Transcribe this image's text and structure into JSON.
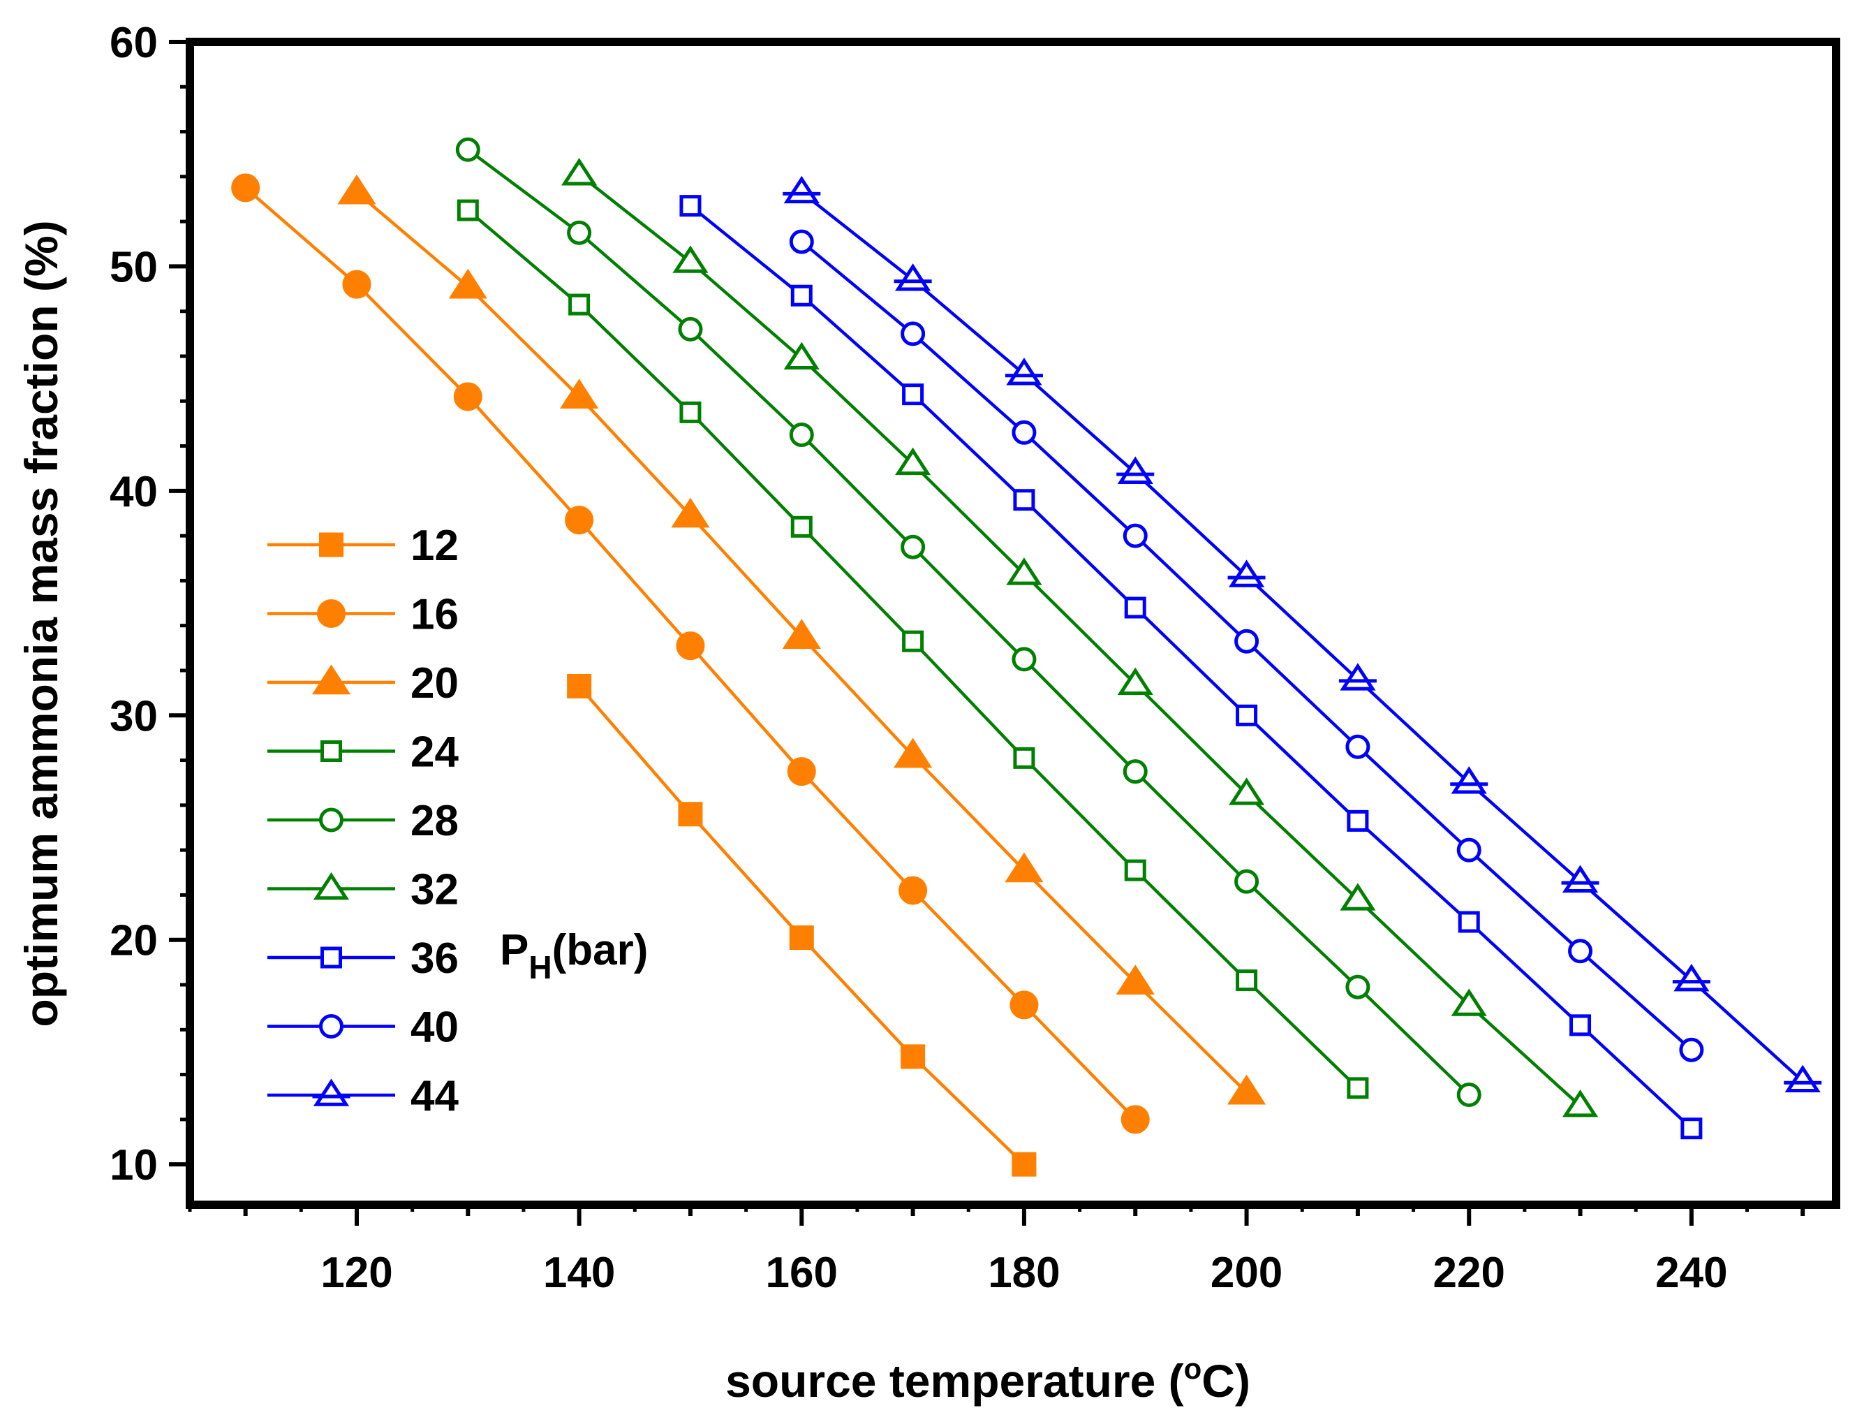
{
  "chart_data": {
    "type": "line",
    "title": "",
    "xlabel": "source temperature (",
    "xlabel_unit_sup": "o",
    "xlabel_unit_tail": "C)",
    "ylabel": "optimum ammonia mass fraction (%)",
    "xlim": [
      105,
      253
    ],
    "ylim": [
      8.2,
      60
    ],
    "xticks": [
      120,
      140,
      160,
      180,
      200,
      220,
      240
    ],
    "yticks": [
      10,
      20,
      30,
      40,
      50,
      60
    ],
    "legend_placement": "left-center",
    "legend_title_main": "P",
    "legend_title_sub": "H",
    "legend_title_tail": "(bar)",
    "colors": {
      "orange": "#ff8000",
      "green": "#008000",
      "blue": "#0000ff",
      "axis": "#000000"
    },
    "series": [
      {
        "name": "12",
        "color": "#ff8000",
        "marker": "square",
        "filled": true,
        "x": [
          140,
          150,
          160,
          170,
          180
        ],
        "y": [
          31.3,
          25.6,
          20.1,
          14.8,
          10.0
        ]
      },
      {
        "name": "16",
        "color": "#ff8000",
        "marker": "circle",
        "filled": true,
        "x": [
          110,
          120,
          130,
          140,
          150,
          160,
          170,
          180,
          190
        ],
        "y": [
          53.5,
          49.2,
          44.2,
          38.7,
          33.1,
          27.5,
          22.2,
          17.1,
          12.0
        ]
      },
      {
        "name": "20",
        "color": "#ff8000",
        "marker": "triangle",
        "filled": true,
        "x": [
          120,
          130,
          140,
          150,
          160,
          170,
          180,
          190,
          200
        ],
        "y": [
          53.3,
          49.1,
          44.2,
          38.9,
          33.5,
          28.2,
          23.1,
          18.1,
          13.2
        ]
      },
      {
        "name": "24",
        "color": "#008000",
        "marker": "square",
        "filled": false,
        "x": [
          130,
          140,
          150,
          160,
          170,
          180,
          190,
          200,
          210
        ],
        "y": [
          52.5,
          48.3,
          43.5,
          38.4,
          33.3,
          28.1,
          23.1,
          18.2,
          13.4
        ]
      },
      {
        "name": "28",
        "color": "#008000",
        "marker": "circle",
        "filled": false,
        "x": [
          130,
          140,
          150,
          160,
          170,
          180,
          190,
          200,
          210,
          220
        ],
        "y": [
          55.2,
          51.5,
          47.2,
          42.5,
          37.5,
          32.5,
          27.5,
          22.6,
          17.9,
          13.1
        ]
      },
      {
        "name": "32",
        "color": "#008000",
        "marker": "triangle",
        "filled": false,
        "x": [
          140,
          150,
          160,
          170,
          180,
          190,
          200,
          210,
          220,
          230
        ],
        "y": [
          54.1,
          50.2,
          45.9,
          41.2,
          36.3,
          31.4,
          26.5,
          21.8,
          17.1,
          12.6
        ]
      },
      {
        "name": "36",
        "color": "#0000ff",
        "marker": "square",
        "filled": false,
        "x": [
          150,
          160,
          170,
          180,
          190,
          200,
          210,
          220,
          230,
          240
        ],
        "y": [
          52.7,
          48.7,
          44.3,
          39.6,
          34.8,
          30.0,
          25.3,
          20.8,
          16.2,
          11.6
        ]
      },
      {
        "name": "40",
        "color": "#0000ff",
        "marker": "circle",
        "filled": false,
        "x": [
          160,
          170,
          180,
          190,
          200,
          210,
          220,
          230,
          240
        ],
        "y": [
          51.1,
          47.0,
          42.6,
          38.0,
          33.3,
          28.6,
          24.0,
          19.5,
          15.1
        ]
      },
      {
        "name": "44",
        "color": "#0000ff",
        "marker": "triangle-bar",
        "filled": false,
        "x": [
          160,
          170,
          180,
          190,
          200,
          210,
          220,
          230,
          240,
          250
        ],
        "y": [
          53.3,
          49.4,
          45.2,
          40.8,
          36.2,
          31.6,
          27.0,
          22.6,
          18.2,
          13.7
        ]
      }
    ]
  }
}
